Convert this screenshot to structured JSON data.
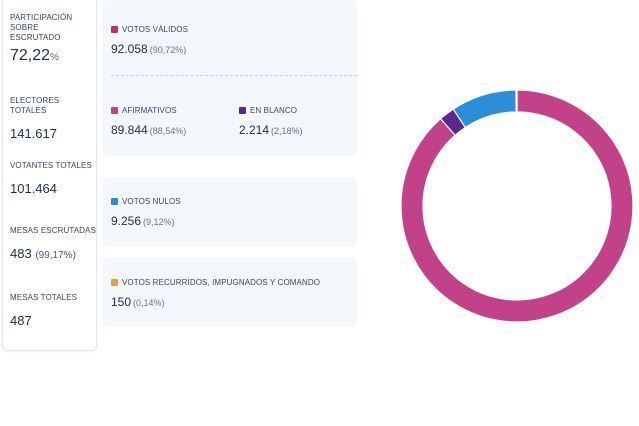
{
  "stats": {
    "participacion": {
      "label": "PARTICIPACIÓN SOBRE ESCRUTADO",
      "value": "72,22",
      "unit": "%"
    },
    "electores": {
      "label": "ELECTORES TOTALES",
      "value": "141.617"
    },
    "votantes": {
      "label": "VOTANTES TOTALES",
      "value": "101.464"
    },
    "mesas_escrutadas": {
      "label": "MESAS ESCRUTADAS",
      "value": "483",
      "pct": "(99,17%)"
    },
    "mesas_totales": {
      "label": "MESAS TOTALES",
      "value": "487"
    }
  },
  "votos": {
    "validos": {
      "label": "VOTOS VÁLIDOS",
      "value": "92.058",
      "pct": "(90,72%)",
      "color": "#c0306f"
    },
    "afirmativos": {
      "label": "AFIRMATIVOS",
      "value": "89.844",
      "pct": "(88,54%)",
      "color": "#c2428a"
    },
    "en_blanco": {
      "label": "EN BLANCO",
      "value": "2.214",
      "pct": "(2,18%)",
      "color": "#5b2592"
    },
    "nulos": {
      "label": "VOTOS NULOS",
      "value": "9.256",
      "pct": "(9,12%)",
      "color": "#2a8fd6"
    },
    "recurridos": {
      "label": "VOTOS RECURRIDOS, IMPUGNADOS Y COMANDO",
      "value": "150",
      "pct": "(0,14%)",
      "color": "#e4a03a"
    }
  },
  "chart_data": {
    "type": "pie",
    "style": "donut",
    "series": [
      {
        "name": "AFIRMATIVOS",
        "value": 88.54,
        "color": "#c2428a"
      },
      {
        "name": "EN BLANCO",
        "value": 2.18,
        "color": "#5b2592"
      },
      {
        "name": "VOTOS NULOS",
        "value": 9.12,
        "color": "#2a8fd6"
      },
      {
        "name": "VOTOS RECURRIDOS, IMPUGNADOS Y COMANDO",
        "value": 0.14,
        "color": "#e4a03a"
      }
    ]
  }
}
